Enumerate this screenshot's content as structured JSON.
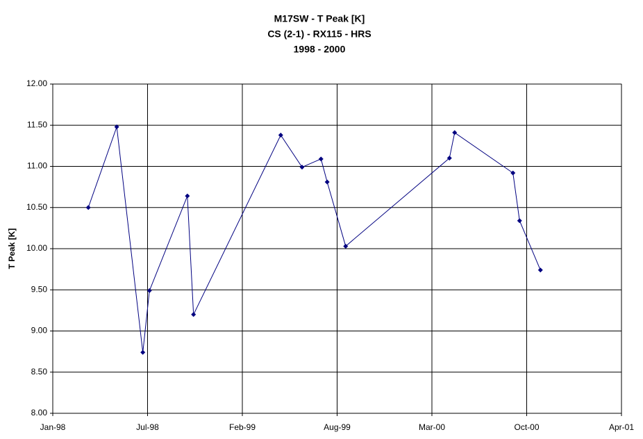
{
  "chart_data": {
    "type": "line",
    "title": [
      "M17SW - T Peak [K]",
      "CS (2-1) - RX115 - HRS",
      "1998 - 2000"
    ],
    "ylabel": "T Peak [K]",
    "x": [
      35871,
      35931,
      35986,
      36000,
      36080,
      36093,
      36277,
      36322,
      36362,
      36375,
      36414,
      36633,
      36644,
      36767,
      36781,
      36825
    ],
    "values": [
      10.5,
      11.48,
      8.74,
      9.49,
      10.64,
      9.2,
      11.38,
      10.99,
      11.09,
      10.81,
      10.03,
      11.1,
      11.41,
      10.92,
      10.34,
      9.74
    ],
    "color": "#000080",
    "xlim": [
      35796,
      36996
    ],
    "xticks": [
      {
        "value": 35796,
        "label": "Jan-98"
      },
      {
        "value": 35996,
        "label": "Jul-98"
      },
      {
        "value": 36196,
        "label": "Feb-99"
      },
      {
        "value": 36396,
        "label": "Aug-99"
      },
      {
        "value": 36596,
        "label": "Mar-00"
      },
      {
        "value": 36796,
        "label": "Oct-00"
      },
      {
        "value": 36996,
        "label": "Apr-01"
      }
    ],
    "ylim": [
      8,
      12
    ],
    "yticks": [
      {
        "value": 8,
        "label": "8.00"
      },
      {
        "value": 8.5,
        "label": "8.50"
      },
      {
        "value": 9,
        "label": "9.00"
      },
      {
        "value": 9.5,
        "label": "9.50"
      },
      {
        "value": 10,
        "label": "10.00"
      },
      {
        "value": 10.5,
        "label": "10.50"
      },
      {
        "value": 11,
        "label": "11.00"
      },
      {
        "value": 11.5,
        "label": "11.50"
      },
      {
        "value": 12,
        "label": "12.00"
      }
    ],
    "grid": true
  }
}
